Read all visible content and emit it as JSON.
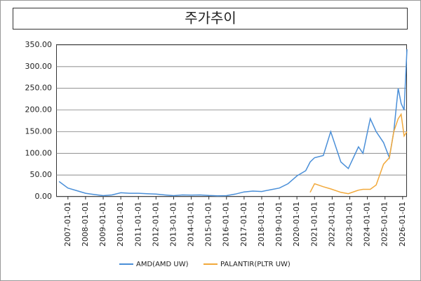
{
  "chart_data": {
    "type": "line",
    "title": "주가추이",
    "x": [
      "2006-07-01",
      "2007-01-01",
      "2007-07-01",
      "2008-01-01",
      "2008-07-01",
      "2009-01-01",
      "2009-07-01",
      "2010-01-01",
      "2010-07-01",
      "2011-01-01",
      "2011-07-01",
      "2012-01-01",
      "2012-07-01",
      "2013-01-01",
      "2013-07-01",
      "2014-01-01",
      "2014-07-01",
      "2015-01-01",
      "2015-07-01",
      "2016-01-01",
      "2016-07-01",
      "2017-01-01",
      "2017-07-01",
      "2018-01-01",
      "2018-07-01",
      "2019-01-01",
      "2019-07-01",
      "2020-01-01",
      "2020-07-01",
      "2020-10-01",
      "2021-01-01",
      "2021-07-01",
      "2021-12-01",
      "2022-07-01",
      "2022-12-01",
      "2023-07-01",
      "2023-10-01",
      "2024-03-01",
      "2024-07-01",
      "2024-12-01",
      "2025-04-01",
      "2025-07-01",
      "2025-10-01",
      "2025-12-01",
      "2026-02-01",
      "2026-04-01"
    ],
    "series": [
      {
        "name": "AMD(AMD UW)",
        "color": "#4a8fd8",
        "values": [
          35,
          20,
          14,
          8,
          5,
          2.5,
          4,
          9,
          8,
          8,
          7,
          6,
          4,
          2.5,
          4,
          3.8,
          4,
          2.7,
          2,
          2.5,
          6,
          11,
          13,
          12,
          16,
          20,
          30,
          48,
          60,
          80,
          90,
          95,
          150,
          80,
          65,
          115,
          100,
          180,
          150,
          125,
          90,
          150,
          250,
          215,
          200,
          340
        ]
      },
      {
        "name": "PALANTIR(PLTR UW)",
        "color": "#f2a93b",
        "values": [
          null,
          null,
          null,
          null,
          null,
          null,
          null,
          null,
          null,
          null,
          null,
          null,
          null,
          null,
          null,
          null,
          null,
          null,
          null,
          null,
          null,
          null,
          null,
          null,
          null,
          null,
          null,
          null,
          null,
          10,
          30,
          23,
          18,
          10,
          7,
          15,
          17,
          17,
          27,
          75,
          90,
          150,
          180,
          190,
          140,
          150
        ]
      }
    ],
    "xlim": [
      "2006-05-01",
      "2026-04-01"
    ],
    "xticks": [
      "2007-01-01",
      "2008-01-01",
      "2009-01-01",
      "2010-01-01",
      "2011-01-01",
      "2012-01-01",
      "2013-01-01",
      "2014-01-01",
      "2015-01-01",
      "2016-01-01",
      "2017-01-01",
      "2018-01-01",
      "2019-01-01",
      "2020-01-01",
      "2021-01-01",
      "2022-01-01",
      "2023-01-01",
      "2024-01-01",
      "2025-01-01",
      "2026-01-01"
    ],
    "ylim": [
      0,
      350
    ],
    "yticks": [
      {
        "value": 0,
        "label": "0.00"
      },
      {
        "value": 50,
        "label": "50.00"
      },
      {
        "value": 100,
        "label": "100.00"
      },
      {
        "value": 150,
        "label": "150.00"
      },
      {
        "value": 200,
        "label": "200.00"
      },
      {
        "value": 250,
        "label": "250.00"
      },
      {
        "value": 300,
        "label": "300.00"
      },
      {
        "value": 350,
        "label": "350.00"
      }
    ],
    "grid": true
  }
}
